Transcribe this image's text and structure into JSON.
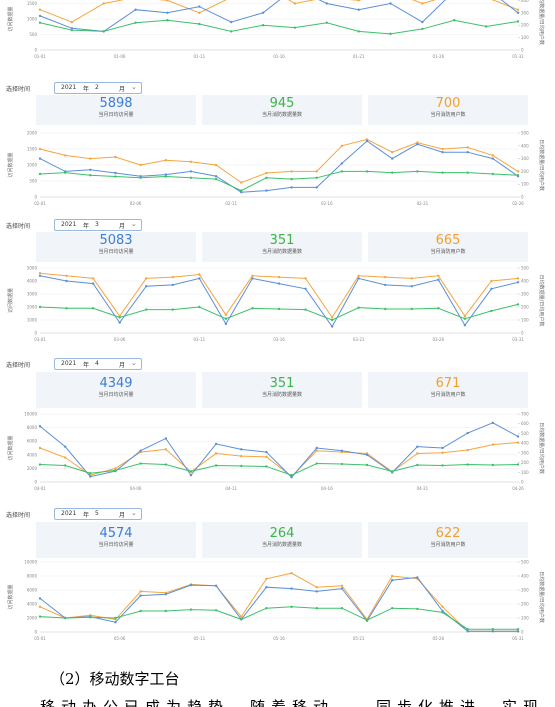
{
  "panels": [
    {
      "chart": {
        "type": "line",
        "ylim": [
          0,
          2000
        ],
        "yticks": [
          0,
          500,
          1000,
          1500,
          2000
        ],
        "y2lim": [
          0,
          500
        ],
        "y2ticks": [
          0,
          100,
          200,
          300,
          400,
          500
        ],
        "ylabel": "访问数据量",
        "y2label": "日均数据量/日均用户数",
        "xticks": [
          "01-01",
          "01-06",
          "01-11",
          "01-16",
          "01-21",
          "01-26",
          "01-31"
        ],
        "series": [
          {
            "name": "当月日均访问量",
            "color": "#f4a640",
            "values": [
              1300,
              900,
              1500,
              1700,
              1600,
              1200,
              1700,
              2100,
              1500,
              1700,
              1600,
              1900,
              1500,
              1800,
              1700,
              1300
            ]
          },
          {
            "name": "当月日均访问量",
            "color": "#5b8fd8",
            "values": [
              1100,
              700,
              600,
              1300,
              1200,
              1400,
              900,
              1200,
              2000,
              1500,
              1300,
              1500,
              900,
              1900,
              2000,
              1200
            ]
          },
          {
            "name": "当月消防数据量数",
            "color": "#3cc06a",
            "axis": "y2",
            "values": [
              220,
              160,
              150,
              220,
              240,
              210,
              150,
              200,
              180,
              220,
              150,
              130,
              170,
              240,
              190,
              230
            ]
          }
        ]
      }
    },
    {
      "filter": {
        "label": "选择时间",
        "year": "2021",
        "year_unit": "年",
        "month": "2",
        "month_unit": "月"
      },
      "stats": [
        {
          "value": 5898,
          "label": "当月日均访问量",
          "color": "#3b7dd8"
        },
        {
          "value": 945,
          "label": "当月消防数据量数",
          "color": "#3cb44b"
        },
        {
          "value": 700,
          "label": "当月消防用户数",
          "color": "#f0a030"
        }
      ],
      "chart": {
        "type": "line",
        "ylim": [
          0,
          2000
        ],
        "yticks": [
          0,
          500,
          1000,
          1500,
          2000
        ],
        "y2lim": [
          0,
          500
        ],
        "y2ticks": [
          0,
          100,
          200,
          300,
          400,
          500
        ],
        "ylabel": "访问数据量",
        "y2label": "日均数据量/日均用户数",
        "xticks": [
          "02-01",
          "02-06",
          "02-11",
          "02-16",
          "02-21",
          "02-26"
        ],
        "series": [
          {
            "name": "当月日均访问量",
            "color": "#f4a640",
            "values": [
              1500,
              1300,
              1200,
              1250,
              1000,
              1150,
              1100,
              1000,
              450,
              750,
              800,
              800,
              1600,
              1800,
              1400,
              1700,
              1500,
              1550,
              1300,
              800
            ]
          },
          {
            "name": "当月日均访问量",
            "color": "#5b8fd8",
            "values": [
              1200,
              800,
              850,
              750,
              650,
              700,
              800,
              650,
              150,
              200,
              300,
              300,
              1050,
              1750,
              1200,
              1650,
              1400,
              1400,
              1200,
              650
            ]
          },
          {
            "name": "当月消防数据量数",
            "color": "#3cc06a",
            "axis": "y2",
            "values": [
              180,
              190,
              170,
              160,
              150,
              160,
              150,
              140,
              50,
              150,
              140,
              150,
              200,
              200,
              190,
              200,
              190,
              190,
              180,
              170
            ]
          }
        ]
      }
    },
    {
      "filter": {
        "label": "选择时间",
        "year": "2021",
        "year_unit": "年",
        "month": "3",
        "month_unit": "月"
      },
      "stats": [
        {
          "value": 5083,
          "label": "当月日均访问量",
          "color": "#3b7dd8"
        },
        {
          "value": 351,
          "label": "当月消防数据量数",
          "color": "#3cb44b"
        },
        {
          "value": 665,
          "label": "当月消防用户数",
          "color": "#f0a030"
        }
      ],
      "chart": {
        "type": "line",
        "ylim": [
          0,
          5000
        ],
        "yticks": [
          0,
          1000,
          2000,
          3000,
          4000,
          5000
        ],
        "y2lim": [
          0,
          500
        ],
        "y2ticks": [
          0,
          100,
          200,
          300,
          400,
          500
        ],
        "ylabel": "访问数据量",
        "y2label": "日均数据量/日均用户数",
        "xticks": [
          "03-01",
          "03-06",
          "03-11",
          "03-16",
          "03-21",
          "03-26",
          "03-31"
        ],
        "series": [
          {
            "name": "当月日均访问量",
            "color": "#f4a640",
            "values": [
              4600,
              4400,
              4200,
              1300,
              4200,
              4300,
              4500,
              1400,
              4400,
              4300,
              4200,
              1200,
              4400,
              4300,
              4200,
              4400,
              1300,
              4000,
              4200
            ]
          },
          {
            "name": "当月日均访问量",
            "color": "#5b8fd8",
            "values": [
              4400,
              4000,
              3800,
              800,
              3600,
              3700,
              4200,
              700,
              4200,
              3800,
              3400,
              500,
              4200,
              3700,
              3600,
              4100,
              600,
              3400,
              3900
            ]
          },
          {
            "name": "当月消防数据量数",
            "color": "#3cc06a",
            "axis": "y2",
            "values": [
              200,
              190,
              190,
              120,
              180,
              180,
              200,
              110,
              190,
              185,
              180,
              100,
              195,
              185,
              185,
              190,
              110,
              170,
              220
            ]
          }
        ]
      }
    },
    {
      "filter": {
        "label": "选择时间",
        "year": "2021",
        "year_unit": "年",
        "month": "4",
        "month_unit": "月"
      },
      "stats": [
        {
          "value": 4349,
          "label": "当月日均访问量",
          "color": "#3b7dd8"
        },
        {
          "value": 351,
          "label": "当月消防数据量数",
          "color": "#3cb44b"
        },
        {
          "value": 671,
          "label": "当月消防用户数",
          "color": "#f0a030"
        }
      ],
      "chart": {
        "type": "line",
        "ylim": [
          0,
          10000
        ],
        "yticks": [
          0,
          2000,
          4000,
          6000,
          8000,
          10000
        ],
        "y2lim": [
          0,
          700
        ],
        "y2ticks": [
          0,
          100,
          200,
          300,
          400,
          500,
          600,
          700
        ],
        "ylabel": "访问数据量",
        "y2label": "日均数据量/日均用户数",
        "xticks": [
          "04-01",
          "04-06",
          "04-11",
          "04-16",
          "04-21",
          "04-26"
        ],
        "series": [
          {
            "name": "当月日均访问量",
            "color": "#f4a640",
            "values": [
              5000,
              3600,
              1000,
              2000,
              4400,
              4800,
              1500,
              4200,
              3800,
              3700,
              800,
              4600,
              4400,
              4200,
              1500,
              4200,
              4300,
              4700,
              5500,
              5800
            ]
          },
          {
            "name": "当月日均访问量",
            "color": "#5b8fd8",
            "values": [
              8200,
              5200,
              800,
              1600,
              4600,
              6400,
              1000,
              5600,
              4800,
              4400,
              700,
              5000,
              4600,
              4000,
              1400,
              5200,
              5000,
              7200,
              8700,
              6700
            ]
          },
          {
            "name": "当月消防数据量数",
            "color": "#3cc06a",
            "axis": "y2",
            "values": [
              180,
              170,
              90,
              120,
              190,
              180,
              110,
              170,
              165,
              160,
              70,
              190,
              185,
              175,
              110,
              175,
              170,
              180,
              175,
              180
            ]
          }
        ]
      }
    },
    {
      "filter": {
        "label": "选择时间",
        "year": "2021",
        "year_unit": "年",
        "month": "5",
        "month_unit": "月"
      },
      "stats": [
        {
          "value": 4574,
          "label": "当月日均访问量",
          "color": "#3b7dd8"
        },
        {
          "value": 264,
          "label": "当月消防数据量数",
          "color": "#3cb44b"
        },
        {
          "value": 622,
          "label": "当月消防用户数",
          "color": "#f0a030"
        }
      ],
      "chart": {
        "type": "line",
        "ylim": [
          0,
          10000
        ],
        "yticks": [
          0,
          2000,
          4000,
          6000,
          8000,
          10000
        ],
        "y2lim": [
          0,
          500
        ],
        "y2ticks": [
          0,
          100,
          200,
          300,
          400,
          500
        ],
        "ylabel": "访问数据量",
        "y2label": "日均数据量/日均用户数",
        "xticks": [
          "05-01",
          "05-06",
          "05-11",
          "05-16",
          "05-21",
          "05-26",
          "05-31"
        ],
        "series": [
          {
            "name": "当月日均访问量",
            "color": "#f4a640",
            "values": [
              3600,
              2000,
              2400,
              1800,
              5800,
              5600,
              6800,
              6600,
              2200,
              7600,
              8400,
              6400,
              6600,
              1800,
              8000,
              7600,
              3600,
              100,
              100,
              100
            ]
          },
          {
            "name": "当月日均访问量",
            "color": "#5b8fd8",
            "values": [
              4800,
              2000,
              2200,
              1400,
              5200,
              5400,
              6700,
              6600,
              1800,
              6400,
              6200,
              5800,
              6200,
              1600,
              7400,
              7800,
              3000,
              100,
              100,
              100
            ]
          },
          {
            "name": "当月消防数据量数",
            "color": "#3cc06a",
            "axis": "y2",
            "values": [
              110,
              100,
              105,
              100,
              150,
              150,
              160,
              155,
              90,
              170,
              180,
              170,
              170,
              85,
              170,
              165,
              140,
              20,
              20,
              20
            ]
          }
        ]
      }
    }
  ],
  "section": {
    "heading": "（2）移动数字工台",
    "body": "移动办公已成为趋势，随着移动……同步化推进，实现"
  }
}
